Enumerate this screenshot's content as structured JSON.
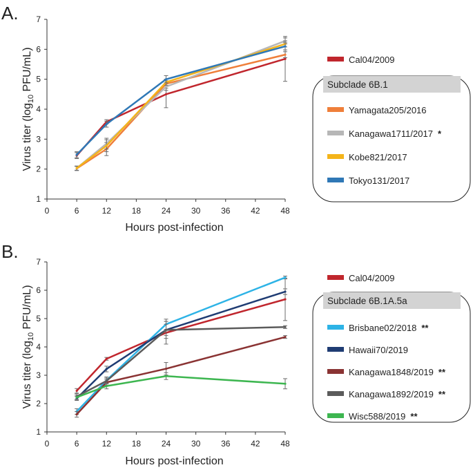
{
  "chart_data": [
    {
      "type": "line",
      "panel_label": "A.",
      "xlabel": "Hours post-infection",
      "ylabel_prefix": "Virus titer (log",
      "ylabel_sub": "10",
      "ylabel_suffix": " PFU/mL)",
      "x_ticks": [
        0,
        6,
        12,
        18,
        24,
        30,
        36,
        42,
        48
      ],
      "y_ticks": [
        1,
        2,
        3,
        4,
        5,
        6,
        7
      ],
      "xlim": [
        0,
        48
      ],
      "ylim": [
        1,
        7
      ],
      "x": [
        6,
        12,
        24,
        48
      ],
      "legend_top": {
        "name": "Cal04/2009",
        "color": "#C0262D"
      },
      "subclade_label": "Subclade 6B.1",
      "series": [
        {
          "name": "Cal04/2009",
          "color": "#C0262D",
          "values": [
            2.45,
            3.58,
            4.5,
            5.68
          ],
          "errors": [
            0.1,
            0.07,
            0.45,
            0.75
          ],
          "in_box": false,
          "mark": ""
        },
        {
          "name": "Yamagata205/2016",
          "color": "#EF7F3A",
          "values": [
            2.02,
            2.67,
            4.85,
            5.82
          ],
          "errors": [
            0.07,
            0.22,
            0.15,
            0.1
          ],
          "in_box": true,
          "mark": ""
        },
        {
          "name": "Kanagawa1711/2017",
          "color": "#B7B7B7",
          "values": [
            2.03,
            2.85,
            4.75,
            6.28
          ],
          "errors": [
            0.07,
            0.18,
            0.12,
            0.1
          ],
          "in_box": true,
          "mark": "*"
        },
        {
          "name": "Kobe821/2017",
          "color": "#F4B41A",
          "values": [
            2.03,
            2.78,
            4.9,
            6.18
          ],
          "errors": [
            0.07,
            0.2,
            0.1,
            0.1
          ],
          "in_box": true,
          "mark": ""
        },
        {
          "name": "Tokyo131/2017",
          "color": "#2F78B6",
          "values": [
            2.48,
            3.5,
            5.0,
            6.1
          ],
          "errors": [
            0.1,
            0.1,
            0.12,
            0.12
          ],
          "in_box": true,
          "mark": ""
        }
      ]
    },
    {
      "type": "line",
      "panel_label": "B.",
      "xlabel": "Hours post-infection",
      "ylabel_prefix": "Virus titer (log",
      "ylabel_sub": "10",
      "ylabel_suffix": " PFU/mL)",
      "x_ticks": [
        0,
        6,
        12,
        18,
        24,
        30,
        36,
        42,
        48
      ],
      "y_ticks": [
        1,
        2,
        3,
        4,
        5,
        6,
        7
      ],
      "xlim": [
        0,
        48
      ],
      "ylim": [
        1,
        7
      ],
      "x": [
        6,
        12,
        24,
        48
      ],
      "legend_top": {
        "name": "Cal04/2009",
        "color": "#C0262D"
      },
      "subclade_label": "Subclade 6B.1A.5a",
      "series": [
        {
          "name": "Cal04/2009",
          "color": "#C0262D",
          "values": [
            2.45,
            3.58,
            4.5,
            5.68
          ],
          "errors": [
            0.08,
            0.05,
            0.4,
            0.75
          ],
          "in_box": false,
          "mark": ""
        },
        {
          "name": "Brisbane02/2018",
          "color": "#2DB3E6",
          "values": [
            1.72,
            2.82,
            4.8,
            6.45
          ],
          "errors": [
            0.1,
            0.12,
            0.18,
            0.05
          ],
          "in_box": true,
          "mark": "**"
        },
        {
          "name": "Hawaii70/2019",
          "color": "#1F3C73",
          "values": [
            2.18,
            3.22,
            4.6,
            5.95
          ],
          "errors": [
            0.07,
            0.1,
            0.2,
            0.1
          ],
          "in_box": true,
          "mark": ""
        },
        {
          "name": "Kanagawa1848/2019",
          "color": "#8A3333",
          "values": [
            1.62,
            2.75,
            3.23,
            4.35
          ],
          "errors": [
            0.1,
            0.1,
            0.22,
            0.05
          ],
          "in_box": true,
          "mark": "**"
        },
        {
          "name": "Kanagawa1892/2019",
          "color": "#5B5B5B",
          "values": [
            2.25,
            2.8,
            4.6,
            4.7
          ],
          "errors": [
            0.1,
            0.1,
            0.3,
            0.05
          ],
          "in_box": true,
          "mark": "**"
        },
        {
          "name": "Wisc588/2019",
          "color": "#3DB650",
          "values": [
            2.22,
            2.62,
            2.97,
            2.7
          ],
          "errors": [
            0.08,
            0.1,
            0.12,
            0.18
          ],
          "in_box": true,
          "mark": "**"
        }
      ]
    }
  ]
}
